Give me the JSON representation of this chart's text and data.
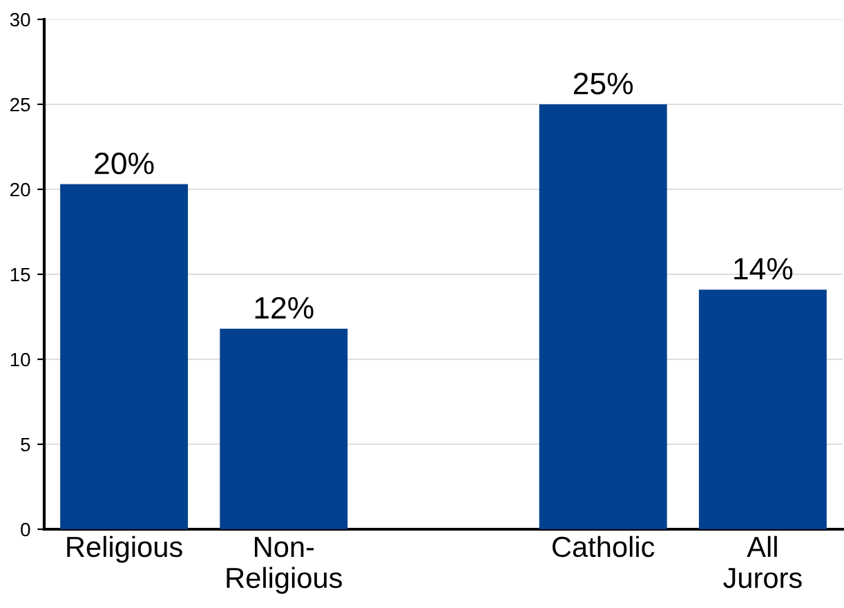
{
  "chart_data": {
    "type": "bar",
    "categories": [
      "Religious",
      "Non-\nReligious",
      null,
      "Catholic",
      "All\nJurors"
    ],
    "values": [
      20.3,
      11.8,
      null,
      25.0,
      14.1
    ],
    "value_labels": [
      "20%",
      "12%",
      null,
      "25%",
      "14%"
    ],
    "color": "#02418f",
    "ylim": [
      0,
      30
    ],
    "yticks": [
      0,
      5,
      10,
      15,
      20,
      25,
      30
    ],
    "grid": "y"
  }
}
